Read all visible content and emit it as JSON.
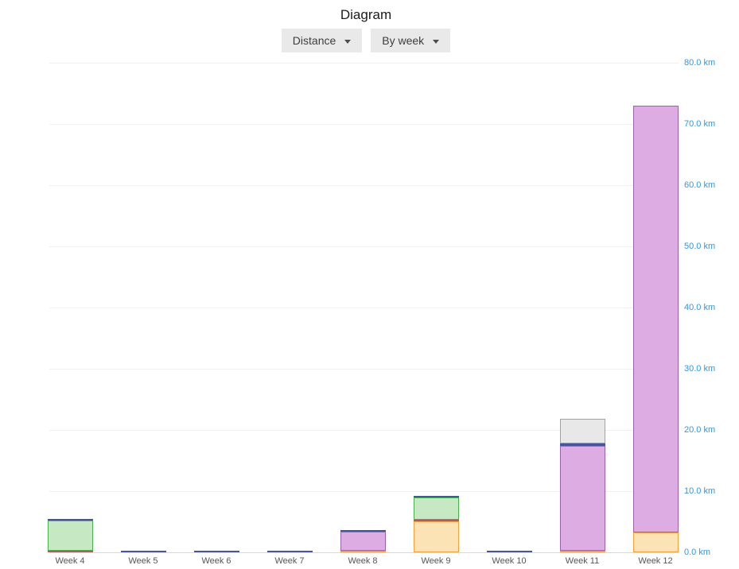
{
  "header": {
    "title": "Diagram"
  },
  "controls": {
    "metric_dropdown": {
      "label": "Distance"
    },
    "grouping_dropdown": {
      "label": "By week"
    }
  },
  "chart_data": {
    "type": "bar",
    "stacked": true,
    "title": "Diagram",
    "unit": "km",
    "categories": [
      "Week 4",
      "Week 5",
      "Week 6",
      "Week 7",
      "Week 8",
      "Week 9",
      "Week 10",
      "Week 11",
      "Week 12"
    ],
    "series": [
      {
        "name": "orange",
        "fill": "#fce3b5",
        "stroke": "#f2a13c",
        "values": [
          0,
          0,
          0,
          0,
          0.2,
          5.0,
          0,
          0.3,
          3.2
        ]
      },
      {
        "name": "red",
        "fill": "#e4b7c0",
        "stroke": "#b5566b",
        "values": [
          0.3,
          0,
          0,
          0,
          0,
          0.3,
          0,
          0,
          0
        ]
      },
      {
        "name": "purple",
        "fill": "#dcace2",
        "stroke": "#9d62ae",
        "values": [
          0,
          0,
          0,
          0,
          3.1,
          0,
          0,
          17.1,
          69.8
        ]
      },
      {
        "name": "green",
        "fill": "#c6e8c2",
        "stroke": "#48b14c",
        "values": [
          4.9,
          0,
          0,
          0,
          0,
          3.6,
          0,
          0,
          0
        ]
      },
      {
        "name": "blue",
        "fill": "#6b77b8",
        "stroke": "#47549e",
        "values": [
          0.3,
          0.3,
          0.3,
          0.3,
          0.3,
          0.3,
          0.3,
          0.4,
          0
        ]
      },
      {
        "name": "gray",
        "fill": "#e8e8e8",
        "stroke": "#a2a2a2",
        "values": [
          0,
          0,
          0,
          0,
          0,
          0,
          0,
          4.0,
          0
        ]
      }
    ],
    "totals": [
      5.5,
      0.3,
      0.3,
      0.3,
      3.6,
      9.2,
      0.3,
      21.8,
      73.0
    ],
    "ylim": [
      0,
      80
    ],
    "yticks": [
      0,
      10,
      20,
      30,
      40,
      50,
      60,
      70,
      80
    ],
    "ytick_labels": [
      "0.0 km",
      "10.0 km",
      "20.0 km",
      "30.0 km",
      "40.0 km",
      "50.0 km",
      "60.0 km",
      "70.0 km",
      "80.0 km"
    ],
    "grid": true,
    "legend": "none",
    "ytick_color": "#2b97f1",
    "xtick_color": "#555555",
    "gridline_color": "#f0f0f0",
    "axisline_color": "#d9d9d9"
  }
}
